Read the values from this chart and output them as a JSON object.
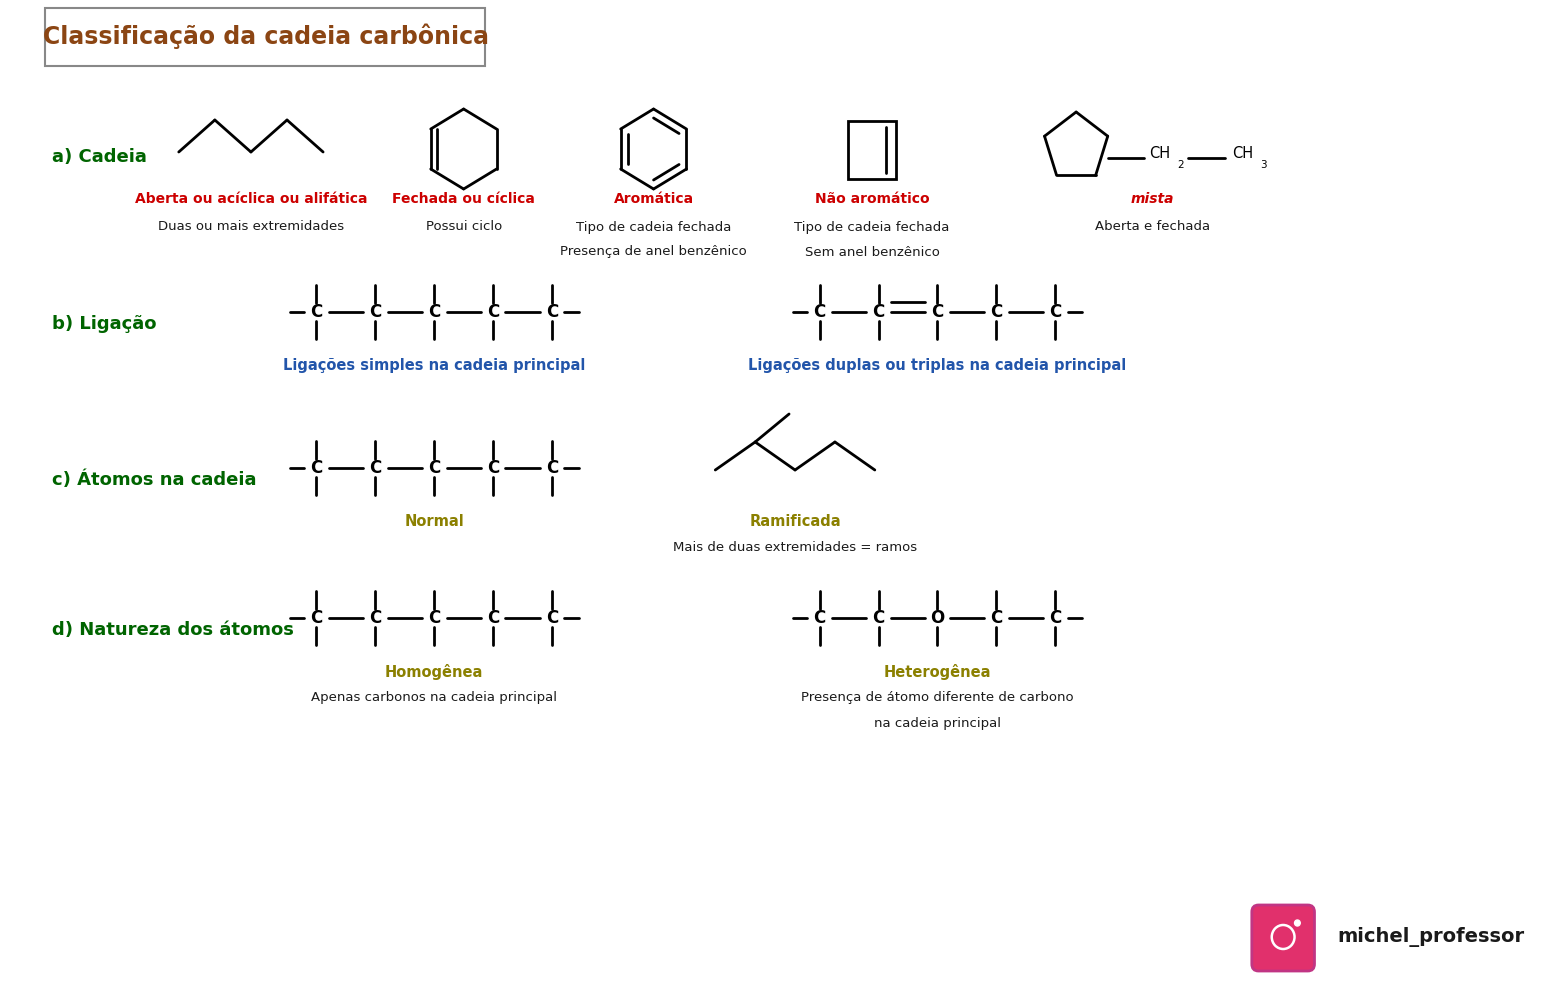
{
  "title": "Classificação da cadeia carbônica",
  "title_color": "#8B4513",
  "bg_color": "#FFFFFF",
  "section_a_label": "a) Cadeia",
  "section_b_label": "b) Ligação",
  "section_c_label": "c) Átomos na cadeia",
  "section_d_label": "d) Natureza dos átomos",
  "section_label_color": "#006400",
  "red_color": "#CC0000",
  "blue_color": "#2255AA",
  "olive_color": "#8B8000",
  "black_color": "#1a1a1a",
  "label_aberta": "Aberta ou acíclica ou alifática",
  "desc_aberta": "Duas ou mais extremidades",
  "label_fechada": "Fechada ou cíclica",
  "desc_fechada": "Possui ciclo",
  "label_aromatica": "Aromática",
  "desc_aromatica1": "Tipo de cadeia fechada",
  "desc_aromatica2": "Presença de anel benzênico",
  "label_nao_aromatico": "Não aromático",
  "desc_nao_aromatico1": "Tipo de cadeia fechada",
  "desc_nao_aromatico2": "Sem anel benzênico",
  "label_mista": "mista",
  "desc_mista": "Aberta e fechada",
  "label_simples": "Ligações simples na cadeia principal",
  "label_duplas": "Ligações duplas ou triplas na cadeia principal",
  "label_normal": "Normal",
  "label_ramificada": "Ramificada",
  "desc_ramificada": "Mais de duas extremidades = ramos",
  "label_homogenea": "Homogênea",
  "desc_homogenea": "Apenas carbonos na cadeia principal",
  "label_heterogenea": "Heterogênea",
  "desc_heterogenea1": "Presença de átomo diferente de carbono",
  "desc_heterogenea2": "na cadeia principal",
  "instagram_text": "michel_professor"
}
